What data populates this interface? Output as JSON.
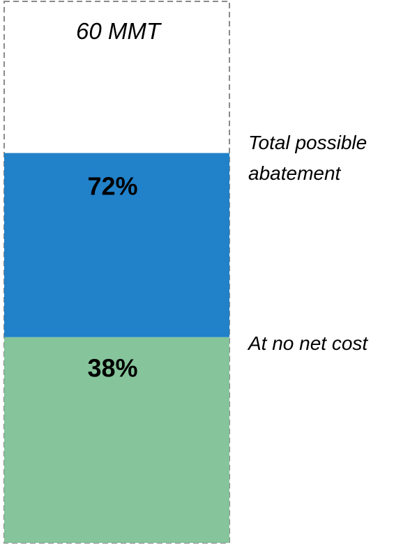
{
  "chart_data": {
    "type": "bar",
    "orientation": "vertical-stacked-single",
    "total_label": "60 MMT",
    "segments": [
      {
        "label": "38%",
        "value": 38,
        "color": "#86c49c",
        "annotation": "At no net cost"
      },
      {
        "label": "72%",
        "value": 34,
        "cumulative": 72,
        "color": "#2181c9",
        "annotation": "Total possible abatement"
      }
    ],
    "total_value": 100,
    "ylim": [
      0,
      100
    ],
    "colors": {
      "green": "#86c49c",
      "blue": "#2181c9",
      "outline": "#8a8a8a"
    }
  }
}
